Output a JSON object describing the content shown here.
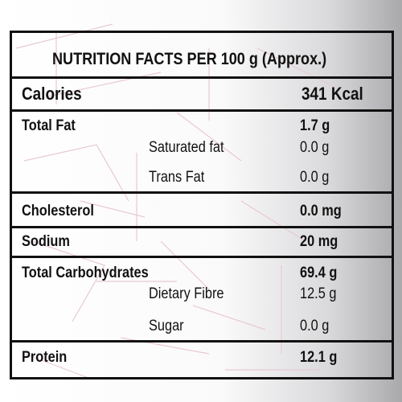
{
  "title": "NUTRITION FACTS PER 100 g (Approx.)",
  "rows": [
    {
      "label": "Calories",
      "value": "341 Kcal"
    },
    {
      "label": "Total Fat",
      "value": "1.7 g",
      "sub": [
        {
          "label": "Saturated fat",
          "value": "0.0 g"
        },
        {
          "label": "Trans Fat",
          "value": "0.0 g"
        }
      ]
    },
    {
      "label": "Cholesterol",
      "value": "0.0 mg"
    },
    {
      "label": "Sodium",
      "value": "20 mg"
    },
    {
      "label": "Total Carbohydrates",
      "value": "69.4 g",
      "sub": [
        {
          "label": "Dietary Fibre",
          "value": "12.5 g"
        },
        {
          "label": "Sugar",
          "value": "0.0 g"
        }
      ]
    },
    {
      "label": "Protein",
      "value": "12.1 g"
    }
  ]
}
